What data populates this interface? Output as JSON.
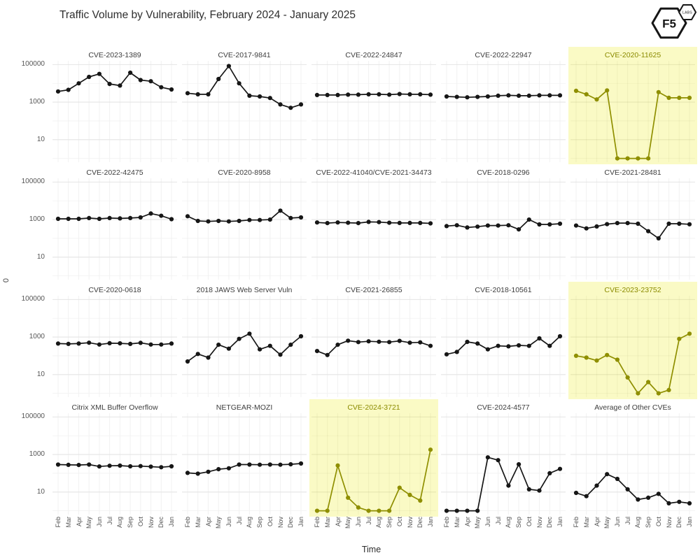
{
  "page": {
    "title": "Traffic Volume by Vulnerability, February 2024 - January 2025"
  },
  "logo": {
    "primary": "F5",
    "badge": "LABS"
  },
  "colors": {
    "line": "#161616",
    "highlight_line": "#8F8F00",
    "highlight_strip_text": "#8B8B00",
    "highlight_bg": "#FAFAC5",
    "grid_major": "#e4e4e4",
    "grid_minor": "#f1f1f1",
    "grid_major_hl": "rgba(60,60,0,0.10)",
    "grid_minor_hl": "rgba(60,60,0,0.06)",
    "tick_text": "#555555"
  },
  "chart_data": {
    "type": "line",
    "layout": "facet-grid",
    "facet_grid": {
      "rows": 4,
      "cols": 5
    },
    "title": "Traffic Volume by Vulnerability, February 2024 - January 2025",
    "xlabel": "Time",
    "ylabel": "0",
    "x": [
      "Feb",
      "Mar",
      "Apr",
      "May",
      "Jun",
      "Jul",
      "Aug",
      "Sep",
      "Oct",
      "Nov",
      "Dec",
      "Jan"
    ],
    "y_scale": "log10",
    "y_ticks": [
      "100000",
      "1000",
      "10"
    ],
    "y_tick_values": [
      100000,
      1000,
      10
    ],
    "ylim": [
      1,
      100000
    ],
    "grid": true,
    "legend": "none",
    "facets": [
      {
        "title": "CVE-2023-1389",
        "highlighted": false,
        "values": [
          3700,
          4500,
          10000,
          22000,
          32000,
          9300,
          7600,
          37000,
          15000,
          13000,
          6200,
          4700
        ]
      },
      {
        "title": "CVE-2017-9841",
        "highlighted": false,
        "values": [
          3000,
          2600,
          2600,
          17000,
          83000,
          10000,
          2200,
          2000,
          1650,
          750,
          500,
          750
        ]
      },
      {
        "title": "CVE-2022-24847",
        "highlighted": false,
        "values": [
          2400,
          2400,
          2400,
          2500,
          2500,
          2600,
          2600,
          2500,
          2700,
          2600,
          2600,
          2500
        ]
      },
      {
        "title": "CVE-2022-22947",
        "highlighted": false,
        "values": [
          2000,
          1900,
          1800,
          1900,
          2000,
          2200,
          2300,
          2200,
          2200,
          2300,
          2300,
          2300
        ]
      },
      {
        "title": "CVE-2020-11625",
        "highlighted": true,
        "values": [
          4000,
          2600,
          1400,
          4200,
          1,
          1,
          1,
          1,
          3400,
          1700,
          1700,
          1700
        ]
      },
      {
        "title": "CVE-2022-42475",
        "highlighted": false,
        "values": [
          1100,
          1100,
          1100,
          1200,
          1100,
          1200,
          1150,
          1200,
          1300,
          2100,
          1600,
          1050
        ]
      },
      {
        "title": "CVE-2020-8958",
        "highlighted": false,
        "values": [
          1500,
          850,
          800,
          850,
          800,
          850,
          950,
          950,
          1000,
          3000,
          1200,
          1300
        ]
      },
      {
        "title": "CVE-2022-41040/CVE-2021-34473",
        "highlighted": false,
        "values": [
          700,
          650,
          700,
          680,
          650,
          750,
          730,
          680,
          660,
          660,
          660,
          630
        ]
      },
      {
        "title": "CVE-2018-0296",
        "highlighted": false,
        "values": [
          450,
          500,
          380,
          420,
          480,
          480,
          500,
          300,
          1000,
          550,
          550,
          600
        ]
      },
      {
        "title": "CVE-2021-28481",
        "highlighted": false,
        "values": [
          480,
          340,
          430,
          570,
          650,
          650,
          600,
          240,
          100,
          600,
          600,
          560
        ]
      },
      {
        "title": "CVE-2020-0618",
        "highlighted": false,
        "values": [
          450,
          430,
          450,
          500,
          400,
          470,
          460,
          430,
          490,
          400,
          400,
          450
        ]
      },
      {
        "title": "2018 JAWS Web Server Vuln",
        "highlighted": false,
        "values": [
          50,
          125,
          80,
          390,
          240,
          800,
          1500,
          220,
          340,
          115,
          390,
          1100
        ]
      },
      {
        "title": "CVE-2021-26855",
        "highlighted": false,
        "values": [
          180,
          110,
          390,
          640,
          540,
          590,
          560,
          540,
          620,
          500,
          520,
          340
        ]
      },
      {
        "title": "CVE-2018-10561",
        "highlighted": false,
        "values": [
          120,
          160,
          550,
          450,
          220,
          340,
          320,
          360,
          340,
          850,
          340,
          1100
        ]
      },
      {
        "title": "CVE-2023-23752",
        "highlighted": true,
        "values": [
          100,
          80,
          56,
          110,
          62,
          7,
          1,
          4,
          1,
          1.5,
          800,
          1500
        ]
      },
      {
        "title": "Citrix XML Buffer Overflow",
        "highlighted": false,
        "values": [
          290,
          280,
          275,
          290,
          230,
          250,
          255,
          235,
          240,
          225,
          210,
          235
        ]
      },
      {
        "title": "NETGEAR-MOZI",
        "highlighted": false,
        "values": [
          105,
          95,
          120,
          165,
          185,
          290,
          290,
          285,
          290,
          285,
          300,
          330
        ]
      },
      {
        "title": "CVE-2024-3721",
        "highlighted": true,
        "values": [
          1,
          1,
          260,
          5,
          1.5,
          1,
          1,
          1,
          17,
          7,
          3.5,
          1800
        ]
      },
      {
        "title": "CVE-2024-4577",
        "highlighted": false,
        "values": [
          1,
          1,
          1,
          1,
          700,
          500,
          22,
          300,
          14,
          12,
          100,
          170
        ]
      },
      {
        "title": "Average of Other CVEs",
        "highlighted": false,
        "values": [
          9,
          6,
          22,
          90,
          50,
          14,
          4,
          5,
          8,
          2.5,
          3,
          2.5
        ]
      }
    ]
  }
}
